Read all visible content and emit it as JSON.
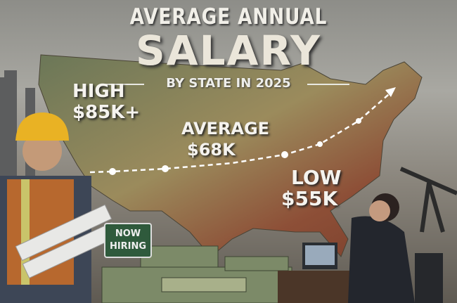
{
  "title": {
    "line1": "AVERAGE ANNUAL",
    "line2": "SALARY",
    "subtitle": "BY STATE IN 2025"
  },
  "labels": {
    "high": {
      "line1": "HIGH",
      "line2": "$85K+"
    },
    "average": {
      "line1": "AVERAGE",
      "line2": "$68K"
    },
    "low": {
      "line1": "LOW",
      "line2": "$55K"
    }
  },
  "sign": {
    "line1": "NOW",
    "line2": "HIRING"
  },
  "colors": {
    "high_region": "#6f7a5c",
    "mid_region": "#9a8a5e",
    "low_region": "#8a4a35",
    "text": "#f1efe8"
  }
}
